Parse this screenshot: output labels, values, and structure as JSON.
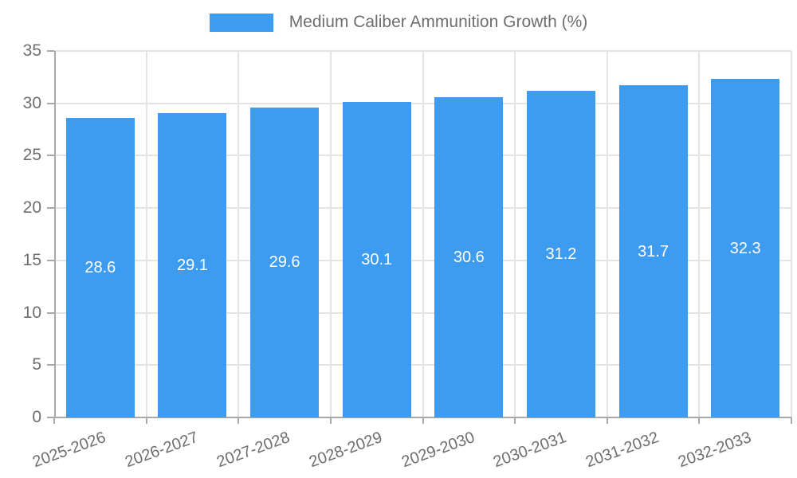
{
  "chart_data": {
    "type": "bar",
    "series_name": "Medium Caliber Ammunition Growth (%)",
    "categories": [
      "2025-2026",
      "2026-2027",
      "2027-2028",
      "2028-2029",
      "2029-2030",
      "2030-2031",
      "2031-2032",
      "2032-2033"
    ],
    "values": [
      28.6,
      29.1,
      29.6,
      30.1,
      30.6,
      31.2,
      31.7,
      32.3
    ],
    "title": "",
    "xlabel": "",
    "ylabel": "",
    "ylim": [
      0,
      35
    ],
    "yticks": [
      0,
      5,
      10,
      15,
      20,
      25,
      30,
      35
    ],
    "grid": true,
    "legend_position": "top-center",
    "x_label_rotation_deg": -20,
    "value_label_decimals": 1,
    "colors": {
      "bar": "#3D9BF0",
      "grid": "#E4E4E4",
      "axis": "#A9A9A9",
      "text": "#6E6E6E",
      "value_label": "#FFFFFF",
      "background": "#FFFFFF"
    }
  }
}
